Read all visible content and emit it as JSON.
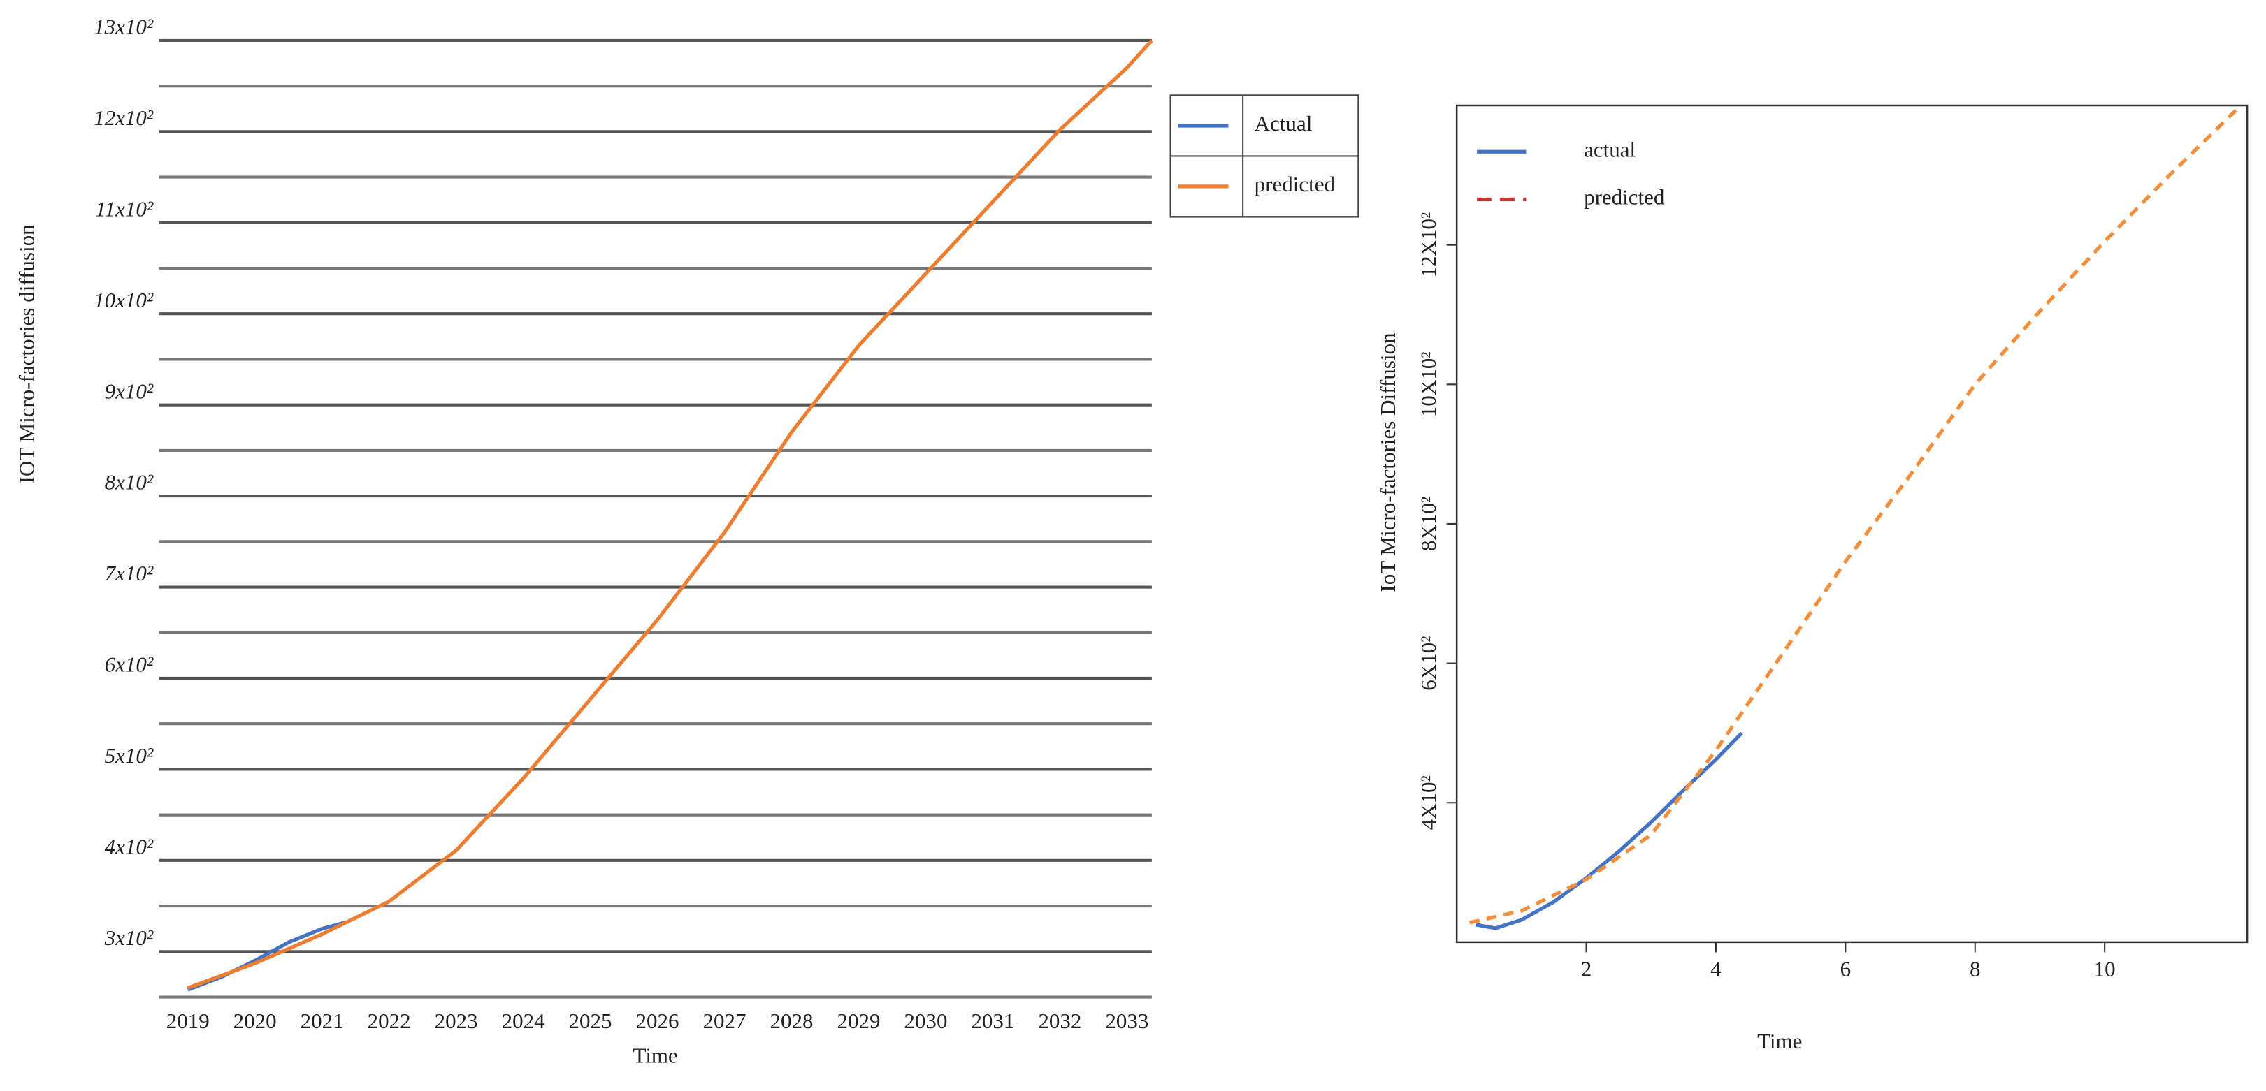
{
  "chart_data": [
    {
      "type": "line",
      "x_label": "Time",
      "y_label": "IOT Micro-factories diffusion",
      "xlim": [
        2018.57,
        2033.37
      ],
      "ylim": [
        250,
        1300
      ],
      "xticks": [
        2019,
        2020,
        2021,
        2022,
        2023,
        2024,
        2025,
        2026,
        2027,
        2028,
        2029,
        2030,
        2031,
        2032,
        2033
      ],
      "yticks": [
        {
          "value": 300,
          "label": "3x10²"
        },
        {
          "value": 400,
          "label": "4x10²"
        },
        {
          "value": 500,
          "label": "5x10²"
        },
        {
          "value": 600,
          "label": "6x10²"
        },
        {
          "value": 700,
          "label": "7x10²"
        },
        {
          "value": 800,
          "label": "8x10²"
        },
        {
          "value": 900,
          "label": "9x10²"
        },
        {
          "value": 1000,
          "label": "10x10²"
        },
        {
          "value": 1100,
          "label": "11x10²"
        },
        {
          "value": 1200,
          "label": "12x10²"
        },
        {
          "value": 1300,
          "label": "13x10²"
        }
      ],
      "minor_yticks": [
        250,
        350,
        450,
        550,
        650,
        750,
        850,
        950,
        1050,
        1150,
        1250
      ],
      "grid": true,
      "legend": "outside-right",
      "series": [
        {
          "name": "Actual",
          "color": "#4472c4",
          "x": [
            2019,
            2019.5,
            2020,
            2020.5,
            2021,
            2021.4
          ],
          "values": [
            258,
            272,
            290,
            310,
            325,
            333
          ]
        },
        {
          "name": "predicted",
          "color": "#ed7d31",
          "x": [
            2019,
            2020,
            2021,
            2022,
            2023,
            2024,
            2025,
            2026,
            2027,
            2028,
            2029,
            2030,
            2031,
            2032,
            2033,
            2033.37
          ],
          "values": [
            260,
            287,
            319,
            355,
            411,
            490,
            577,
            664,
            760,
            870,
            965,
            1044,
            1123,
            1202,
            1270,
            1300
          ]
        }
      ]
    },
    {
      "type": "line",
      "x_label": "Time",
      "y_label": "IoT Micro-factories Diffusion",
      "xlim": [
        0,
        12.2
      ],
      "ylim": [
        200,
        1400
      ],
      "xticks": [
        2,
        4,
        6,
        8,
        10
      ],
      "yticks": [
        {
          "value": 400,
          "label": "4X10²"
        },
        {
          "value": 600,
          "label": "6X10²"
        },
        {
          "value": 800,
          "label": "8X10²"
        },
        {
          "value": 1000,
          "label": "10X10²"
        },
        {
          "value": 1200,
          "label": "12X10²"
        }
      ],
      "grid": false,
      "legend": "top-left",
      "series": [
        {
          "name": "actual",
          "color": "#4472c4",
          "x": [
            0.3,
            0.6,
            1,
            1.5,
            2,
            2.5,
            3,
            3.5,
            4,
            4.4
          ],
          "values": [
            225,
            220,
            232,
            258,
            292,
            330,
            372,
            418,
            462,
            500
          ]
        },
        {
          "name": "predicted",
          "color": "#f28e3c",
          "legend_color": "#d03030",
          "dashed": true,
          "x": [
            0.2,
            1,
            2,
            3,
            4,
            5,
            6,
            7,
            8,
            9,
            10,
            11,
            12.1
          ],
          "values": [
            228,
            245,
            290,
            354,
            475,
            610,
            746,
            870,
            1000,
            1105,
            1205,
            1300,
            1400
          ]
        }
      ]
    }
  ]
}
